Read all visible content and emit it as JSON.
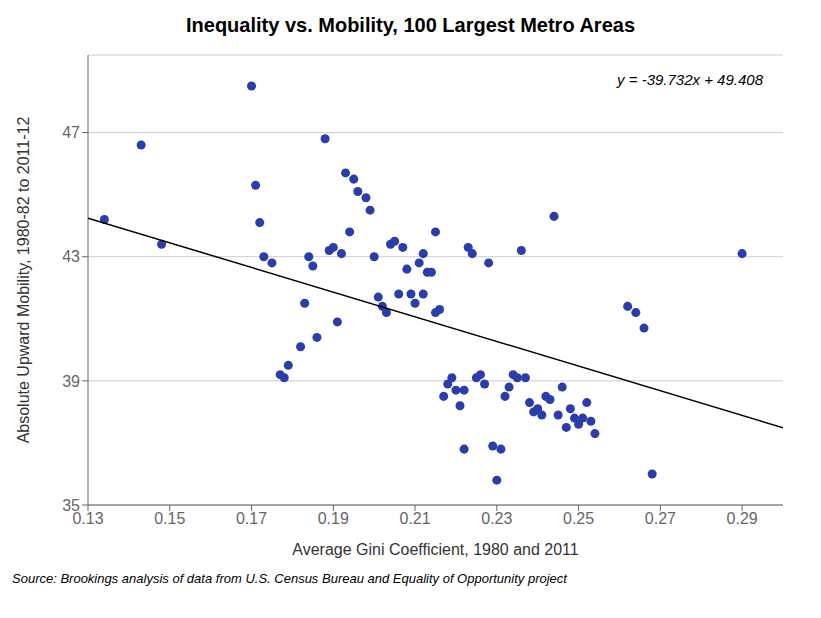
{
  "chart_data": {
    "type": "scatter",
    "title": "Inequality vs. Mobility, 100 Largest Metro Areas",
    "xlabel": "Average Gini Coefficient,  1980 and 2011",
    "ylabel": "Absolute Upward Mobility, 1980-82 to 2011-12",
    "annotations": [
      "y = -39.732x + 49.408",
      "Source: Brookings analysis of data from U.S. Census Bureau and Equality of Opportunity project"
    ],
    "xlim": [
      0.13,
      0.3
    ],
    "ylim": [
      35,
      49.5
    ],
    "xticks": [
      0.13,
      0.15,
      0.17,
      0.19,
      0.21,
      0.23,
      0.25,
      0.27,
      0.29
    ],
    "yticks": [
      35,
      39,
      43,
      47
    ],
    "grid": true,
    "series": [
      {
        "type": "scatter",
        "marker": "o",
        "color": "#2b3dab",
        "x": [
          0.134,
          0.143,
          0.148,
          0.17,
          0.171,
          0.172,
          0.173,
          0.175,
          0.177,
          0.178,
          0.179,
          0.182,
          0.183,
          0.184,
          0.185,
          0.186,
          0.188,
          0.189,
          0.19,
          0.191,
          0.192,
          0.193,
          0.194,
          0.195,
          0.196,
          0.198,
          0.199,
          0.2,
          0.201,
          0.202,
          0.203,
          0.204,
          0.205,
          0.206,
          0.207,
          0.208,
          0.209,
          0.21,
          0.211,
          0.212,
          0.212,
          0.213,
          0.214,
          0.215,
          0.215,
          0.216,
          0.217,
          0.218,
          0.219,
          0.22,
          0.221,
          0.222,
          0.222,
          0.223,
          0.224,
          0.225,
          0.226,
          0.227,
          0.228,
          0.229,
          0.23,
          0.231,
          0.232,
          0.233,
          0.234,
          0.235,
          0.236,
          0.237,
          0.238,
          0.239,
          0.24,
          0.241,
          0.242,
          0.243,
          0.244,
          0.245,
          0.246,
          0.247,
          0.248,
          0.249,
          0.25,
          0.251,
          0.252,
          0.253,
          0.254,
          0.262,
          0.264,
          0.266,
          0.268,
          0.29
        ],
        "values": [
          44.2,
          46.6,
          43.4,
          48.5,
          45.3,
          44.1,
          43.0,
          42.8,
          39.2,
          39.1,
          39.5,
          40.1,
          41.5,
          43.0,
          42.7,
          40.4,
          46.8,
          43.2,
          43.3,
          40.9,
          43.1,
          45.7,
          43.8,
          45.5,
          45.1,
          44.9,
          44.5,
          43.0,
          41.7,
          41.4,
          41.2,
          43.4,
          43.5,
          41.8,
          43.3,
          42.6,
          41.8,
          41.5,
          42.8,
          41.8,
          43.1,
          42.5,
          42.5,
          43.8,
          41.2,
          41.3,
          38.5,
          38.9,
          39.1,
          38.7,
          38.2,
          38.7,
          36.8,
          43.3,
          43.1,
          39.1,
          39.2,
          38.9,
          42.8,
          36.9,
          35.8,
          36.8,
          38.5,
          38.8,
          39.2,
          39.1,
          43.2,
          39.1,
          38.3,
          38.0,
          38.1,
          37.9,
          38.5,
          38.4,
          44.3,
          37.9,
          38.8,
          37.5,
          38.1,
          37.8,
          37.6,
          37.8,
          38.3,
          37.7,
          37.3,
          41.4,
          41.2,
          40.7,
          36.0,
          43.1
        ]
      },
      {
        "type": "line",
        "line_style": "solid",
        "color": "#000000",
        "x": [
          0.13,
          0.3
        ],
        "values": [
          44.24284,
          37.4884
        ]
      }
    ]
  }
}
